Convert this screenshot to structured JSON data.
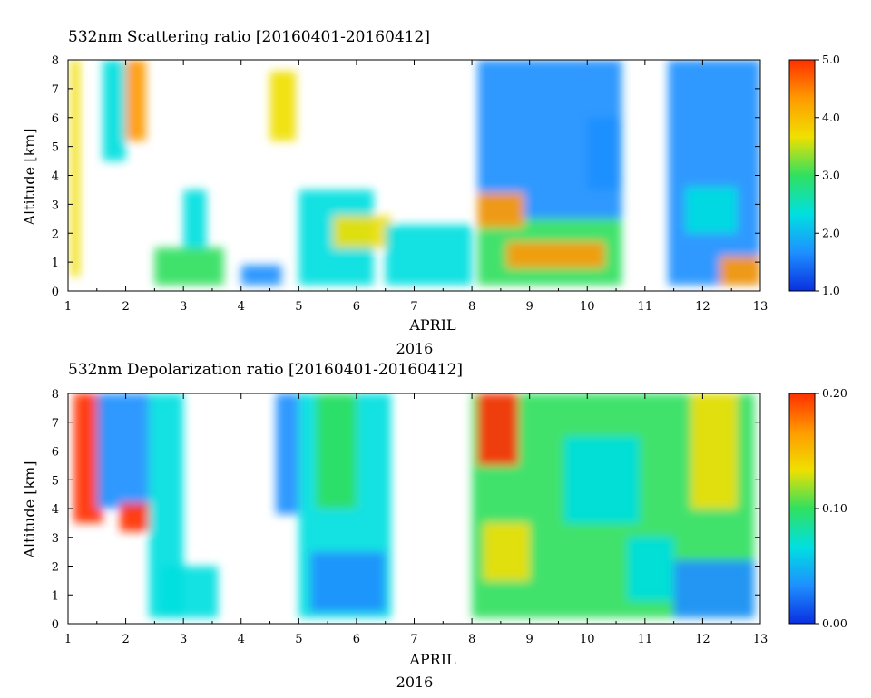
{
  "chart_data": [
    {
      "type": "heatmap",
      "title": "532nm Scattering ratio [20160401-20160412]",
      "xlabel": "APRIL",
      "xlabel2": "2016",
      "ylabel": "Altitude [km]",
      "x_ticks": [
        "1",
        "2",
        "3",
        "4",
        "5",
        "6",
        "7",
        "8",
        "9",
        "10",
        "11",
        "12",
        "13"
      ],
      "y_ticks": [
        "0",
        "1",
        "2",
        "3",
        "4",
        "5",
        "6",
        "7",
        "8"
      ],
      "xlim": [
        1,
        13
      ],
      "ylim": [
        0,
        8
      ],
      "colorbar": {
        "min": 1.0,
        "max": 5.0,
        "ticks": [
          "1.0",
          "2.0",
          "3.0",
          "4.0",
          "5.0"
        ]
      },
      "colormap": [
        "#0a2fe0",
        "#1e90ff",
        "#00e0e0",
        "#30e060",
        "#f0e000",
        "#ff9a00",
        "#ff3000"
      ],
      "fields": [
        {
          "x": [
            1.05,
            1.2
          ],
          "y": [
            0.5,
            8
          ],
          "v": 3.6
        },
        {
          "x": [
            1.6,
            2.0
          ],
          "y": [
            4.5,
            8
          ],
          "v": 2.3
        },
        {
          "x": [
            2.0,
            2.35
          ],
          "y": [
            5.2,
            8
          ],
          "v": 4.2
        },
        {
          "x": [
            2.5,
            3.7
          ],
          "y": [
            0.2,
            1.5
          ],
          "v": 3.1
        },
        {
          "x": [
            3.0,
            3.4
          ],
          "y": [
            1.5,
            3.5
          ],
          "v": 2.1
        },
        {
          "x": [
            4.0,
            4.7
          ],
          "y": [
            0.2,
            0.9
          ],
          "v": 1.9
        },
        {
          "x": [
            4.5,
            4.95
          ],
          "y": [
            5.2,
            7.6
          ],
          "v": 3.6
        },
        {
          "x": [
            5.0,
            6.3
          ],
          "y": [
            0.2,
            3.5
          ],
          "v": 2.4
        },
        {
          "x": [
            5.6,
            6.6
          ],
          "y": [
            1.5,
            2.6
          ],
          "v": 3.5
        },
        {
          "x": [
            6.5,
            8.0
          ],
          "y": [
            0.2,
            2.3
          ],
          "v": 2.0
        },
        {
          "x": [
            8.1,
            10.6
          ],
          "y": [
            0.2,
            2.5
          ],
          "v": 3.2
        },
        {
          "x": [
            8.6,
            10.3
          ],
          "y": [
            0.8,
            1.7
          ],
          "v": 4.6
        },
        {
          "x": [
            8.1,
            10.6
          ],
          "y": [
            2.5,
            8
          ],
          "v": 1.8
        },
        {
          "x": [
            8.1,
            8.9
          ],
          "y": [
            2.2,
            3.4
          ],
          "v": 4.2
        },
        {
          "x": [
            10.0,
            10.6
          ],
          "y": [
            3.5,
            6
          ],
          "v": 1.9
        },
        {
          "x": [
            11.4,
            13.0
          ],
          "y": [
            0.2,
            8
          ],
          "v": 1.8
        },
        {
          "x": [
            11.7,
            12.6
          ],
          "y": [
            2.0,
            3.6
          ],
          "v": 2.6
        },
        {
          "x": [
            12.3,
            13.0
          ],
          "y": [
            0.2,
            1.2
          ],
          "v": 4.2
        }
      ]
    },
    {
      "type": "heatmap",
      "title": "532nm Depolarization ratio [20160401-20160412]",
      "xlabel": "APRIL",
      "xlabel2": "2016",
      "ylabel": "Altitude [km]",
      "x_ticks": [
        "1",
        "2",
        "3",
        "4",
        "5",
        "6",
        "7",
        "8",
        "9",
        "10",
        "11",
        "12",
        "13"
      ],
      "y_ticks": [
        "0",
        "1",
        "2",
        "3",
        "4",
        "5",
        "6",
        "7",
        "8"
      ],
      "xlim": [
        1,
        13
      ],
      "ylim": [
        0,
        8
      ],
      "colorbar": {
        "min": 0.0,
        "max": 0.2,
        "ticks": [
          "0.00",
          "0.10",
          "0.20"
        ]
      },
      "colormap": [
        "#0a2fe0",
        "#1e90ff",
        "#00e0e0",
        "#30e060",
        "#f0e000",
        "#ff9a00",
        "#ff3000"
      ],
      "fields": [
        {
          "x": [
            1.1,
            1.6
          ],
          "y": [
            3.5,
            8
          ],
          "v": 0.19
        },
        {
          "x": [
            1.5,
            2.4
          ],
          "y": [
            4.0,
            8
          ],
          "v": 0.03
        },
        {
          "x": [
            1.9,
            2.4
          ],
          "y": [
            3.2,
            4.2
          ],
          "v": 0.19
        },
        {
          "x": [
            2.4,
            3.0
          ],
          "y": [
            0.2,
            8
          ],
          "v": 0.05
        },
        {
          "x": [
            2.6,
            3.6
          ],
          "y": [
            0.2,
            2.0
          ],
          "v": 0.06
        },
        {
          "x": [
            4.6,
            5.0
          ],
          "y": [
            3.8,
            8
          ],
          "v": 0.03
        },
        {
          "x": [
            5.0,
            6.6
          ],
          "y": [
            0.2,
            8
          ],
          "v": 0.07
        },
        {
          "x": [
            5.2,
            6.5
          ],
          "y": [
            0.4,
            2.5
          ],
          "v": 0.04
        },
        {
          "x": [
            5.3,
            6.0
          ],
          "y": [
            4.0,
            8
          ],
          "v": 0.1
        },
        {
          "x": [
            8.0,
            12.9
          ],
          "y": [
            0.2,
            8
          ],
          "v": 0.09
        },
        {
          "x": [
            8.1,
            8.8
          ],
          "y": [
            5.5,
            8
          ],
          "v": 0.19
        },
        {
          "x": [
            8.2,
            9.0
          ],
          "y": [
            1.5,
            3.5
          ],
          "v": 0.12
        },
        {
          "x": [
            9.6,
            10.9
          ],
          "y": [
            3.5,
            6.5
          ],
          "v": 0.05
        },
        {
          "x": [
            10.7,
            11.5
          ],
          "y": [
            0.8,
            3.0
          ],
          "v": 0.05
        },
        {
          "x": [
            11.5,
            12.9
          ],
          "y": [
            0.2,
            2.2
          ],
          "v": 0.04
        },
        {
          "x": [
            11.8,
            12.6
          ],
          "y": [
            4.0,
            8
          ],
          "v": 0.12
        }
      ]
    }
  ]
}
